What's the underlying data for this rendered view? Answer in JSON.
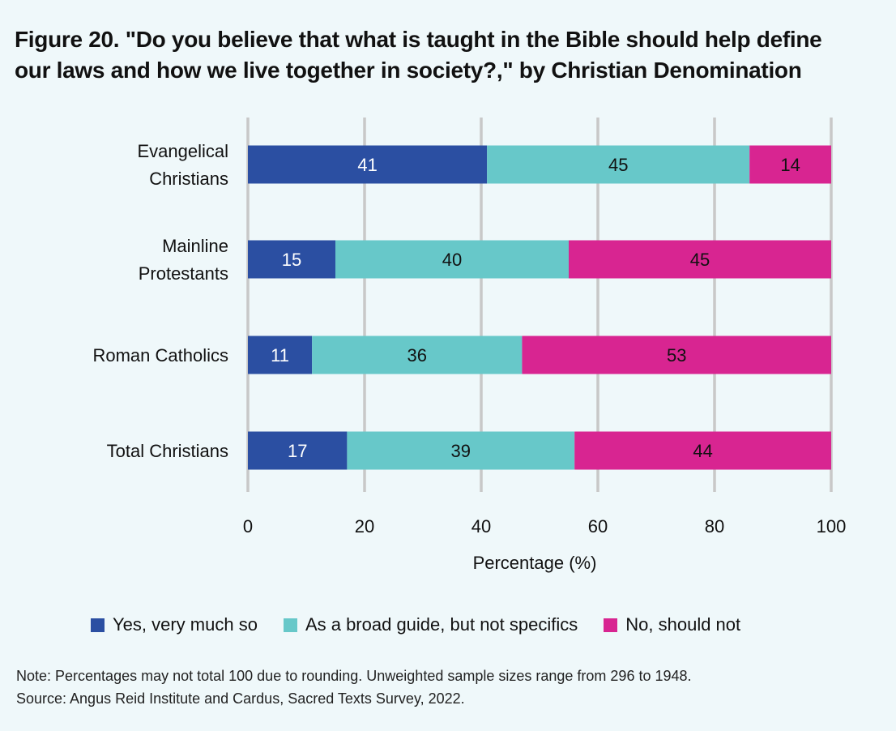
{
  "chart_data": {
    "type": "bar",
    "orientation": "horizontal",
    "stacked": true,
    "title": "Figure 20. \"Do you believe that what is taught in the Bible should help define our laws and how we live together in society?,\" by Christian Denomination",
    "title_lines": [
      "Figure 20. \"Do you believe that what is taught in the Bible should help define",
      "our laws and how we live together in society?,\" by Christian Denomination"
    ],
    "categories": [
      [
        "Evangelical",
        "Christians"
      ],
      [
        "Mainline",
        "Protestants"
      ],
      [
        "Roman Catholics"
      ],
      [
        "Total Christians"
      ]
    ],
    "category_names": [
      "Evangelical Christians",
      "Mainline Protestants",
      "Roman Catholics",
      "Total Christians"
    ],
    "series": [
      {
        "name": "Yes, very much so",
        "color": "#2B4FA2",
        "label_color": "#FFFFFF",
        "values": [
          41,
          15,
          11,
          17
        ]
      },
      {
        "name": "As a broad guide, but not specifics",
        "color": "#67C8C9",
        "label_color": "#111111",
        "values": [
          45,
          40,
          36,
          39
        ]
      },
      {
        "name": "No, should not",
        "color": "#D82591",
        "label_color": "#111111",
        "values": [
          14,
          45,
          53,
          44
        ]
      }
    ],
    "xlabel": "Percentage (%)",
    "ylabel": "",
    "xlim": [
      0,
      100
    ],
    "xticks": [
      0,
      20,
      40,
      60,
      80,
      100
    ],
    "grid": true,
    "legend_position": "bottom"
  },
  "note": "Note: Percentages may not total 100 due to rounding. Unweighted sample sizes range from 296 to 1948.",
  "source": "Source: Angus Reid Institute and Cardus, Sacred Texts Survey, 2022."
}
